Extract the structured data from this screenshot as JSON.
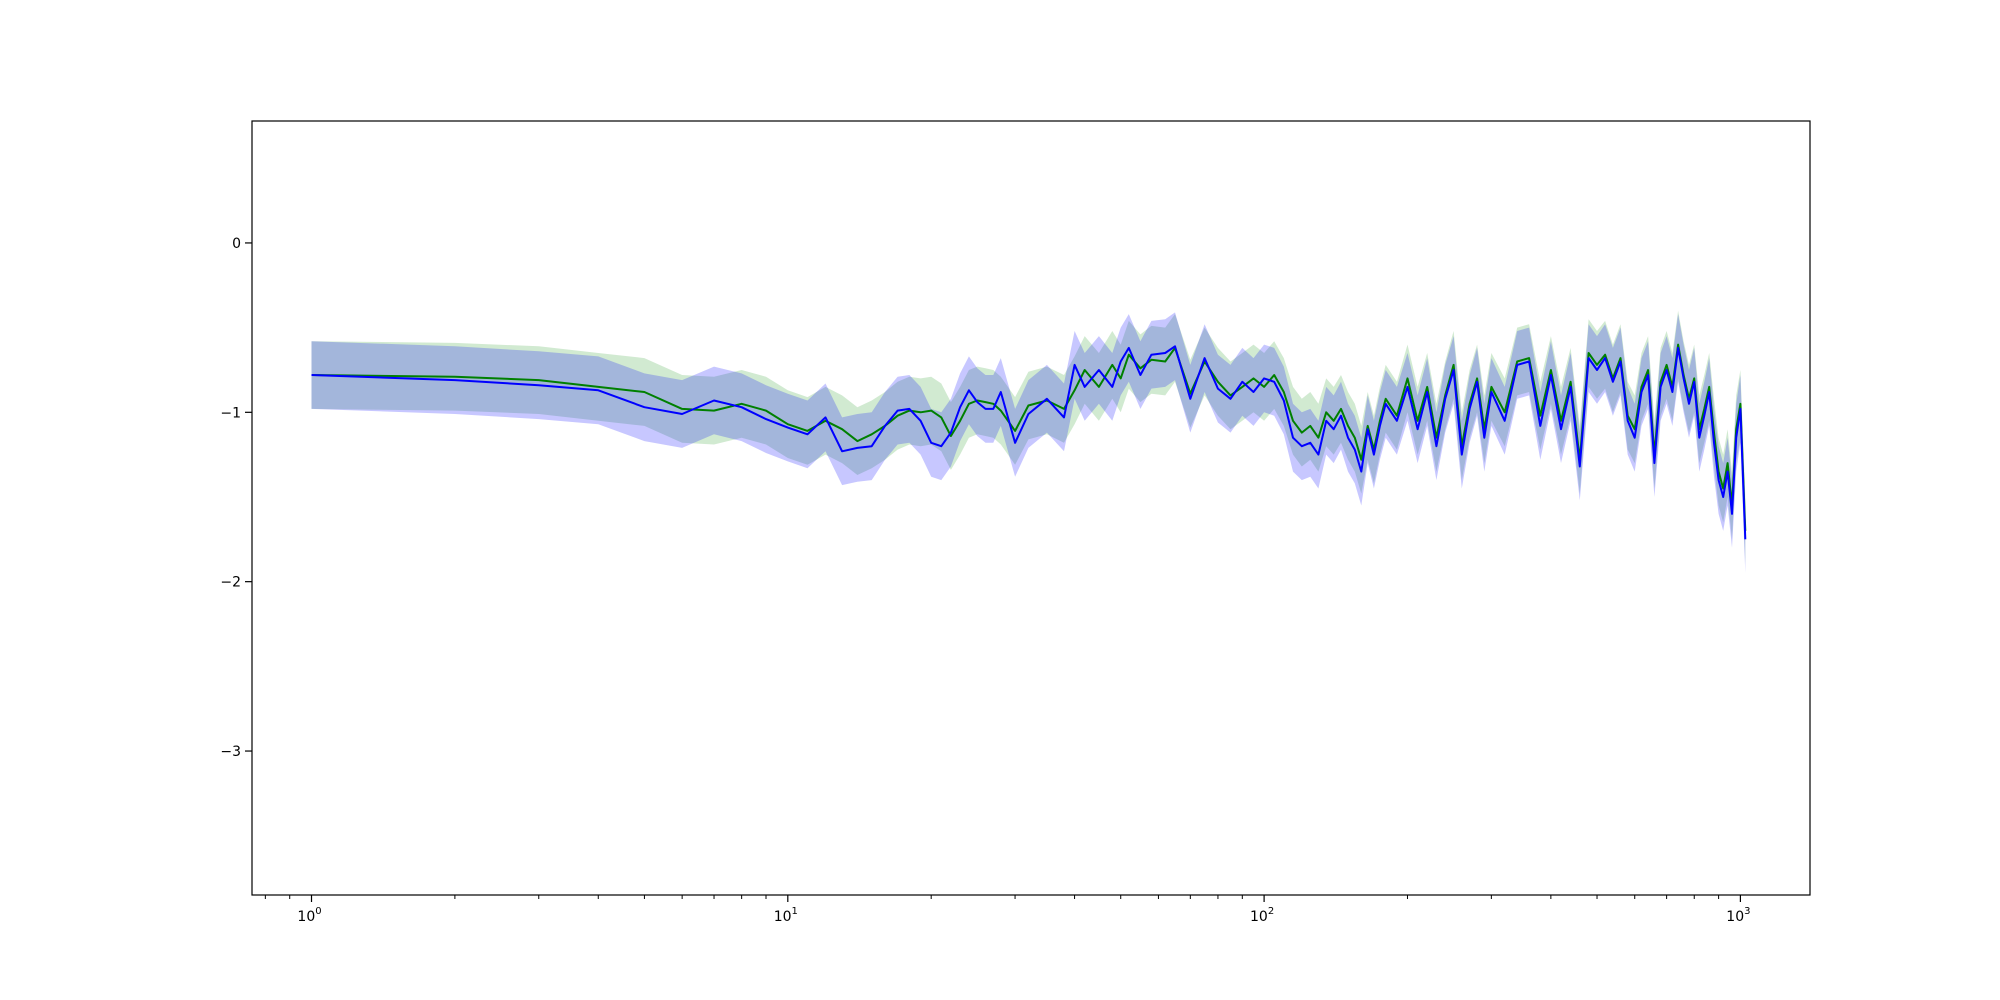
{
  "chart_data": {
    "type": "line",
    "title": "",
    "xlabel": "",
    "ylabel": "",
    "xscale": "log",
    "xlim": [
      0.75,
      1400
    ],
    "ylim": [
      -3.85,
      0.72
    ],
    "grid": false,
    "legend": "none",
    "x_ticks": [
      {
        "value": 1,
        "base": "10",
        "exp": "0"
      },
      {
        "value": 10,
        "base": "10",
        "exp": "1"
      },
      {
        "value": 100,
        "base": "10",
        "exp": "2"
      },
      {
        "value": 1000,
        "base": "10",
        "exp": "3"
      }
    ],
    "y_ticks": [
      {
        "value": 0,
        "label": "0"
      },
      {
        "value": -1,
        "label": "−1"
      },
      {
        "value": -2,
        "label": "−2"
      },
      {
        "value": -3,
        "label": "−3"
      }
    ],
    "series": [
      {
        "color": "#008000",
        "band_color": "#2ca02c",
        "points": [
          [
            1,
            -0.78
          ],
          [
            2,
            -0.79
          ],
          [
            3,
            -0.81
          ],
          [
            4,
            -0.85
          ],
          [
            5,
            -0.88
          ],
          [
            6,
            -0.98
          ],
          [
            7,
            -0.99
          ],
          [
            8,
            -0.95
          ],
          [
            9,
            -0.99
          ],
          [
            10,
            -1.07
          ],
          [
            11,
            -1.11
          ],
          [
            12,
            -1.05
          ],
          [
            13,
            -1.1
          ],
          [
            14,
            -1.17
          ],
          [
            15,
            -1.13
          ],
          [
            16,
            -1.08
          ],
          [
            17,
            -1.02
          ],
          [
            18,
            -0.99
          ],
          [
            19,
            -1.0
          ],
          [
            20,
            -0.99
          ],
          [
            21,
            -1.03
          ],
          [
            22,
            -1.14
          ],
          [
            23,
            -1.05
          ],
          [
            24,
            -0.95
          ],
          [
            25,
            -0.93
          ],
          [
            26,
            -0.94
          ],
          [
            27,
            -0.95
          ],
          [
            28,
            -0.99
          ],
          [
            30,
            -1.11
          ],
          [
            32,
            -0.96
          ],
          [
            35,
            -0.93
          ],
          [
            38,
            -0.98
          ],
          [
            40,
            -0.87
          ],
          [
            42,
            -0.75
          ],
          [
            45,
            -0.85
          ],
          [
            48,
            -0.72
          ],
          [
            50,
            -0.8
          ],
          [
            52,
            -0.66
          ],
          [
            55,
            -0.74
          ],
          [
            58,
            -0.69
          ],
          [
            62,
            -0.7
          ],
          [
            65,
            -0.62
          ],
          [
            70,
            -0.89
          ],
          [
            75,
            -0.7
          ],
          [
            80,
            -0.82
          ],
          [
            85,
            -0.9
          ],
          [
            90,
            -0.85
          ],
          [
            95,
            -0.8
          ],
          [
            100,
            -0.85
          ],
          [
            105,
            -0.78
          ],
          [
            110,
            -0.88
          ],
          [
            115,
            -1.05
          ],
          [
            120,
            -1.12
          ],
          [
            125,
            -1.08
          ],
          [
            130,
            -1.15
          ],
          [
            135,
            -1.0
          ],
          [
            140,
            -1.05
          ],
          [
            145,
            -0.98
          ],
          [
            150,
            -1.08
          ],
          [
            155,
            -1.15
          ],
          [
            160,
            -1.28
          ],
          [
            165,
            -1.08
          ],
          [
            170,
            -1.22
          ],
          [
            175,
            -1.05
          ],
          [
            180,
            -0.92
          ],
          [
            190,
            -1.02
          ],
          [
            200,
            -0.8
          ],
          [
            210,
            -1.05
          ],
          [
            220,
            -0.85
          ],
          [
            230,
            -1.15
          ],
          [
            240,
            -0.9
          ],
          [
            250,
            -0.72
          ],
          [
            260,
            -1.2
          ],
          [
            270,
            -0.95
          ],
          [
            280,
            -0.8
          ],
          [
            290,
            -1.1
          ],
          [
            300,
            -0.85
          ],
          [
            320,
            -1.0
          ],
          [
            340,
            -0.7
          ],
          [
            360,
            -0.68
          ],
          [
            380,
            -1.02
          ],
          [
            400,
            -0.75
          ],
          [
            420,
            -1.05
          ],
          [
            440,
            -0.82
          ],
          [
            460,
            -1.28
          ],
          [
            480,
            -0.65
          ],
          [
            500,
            -0.72
          ],
          [
            520,
            -0.66
          ],
          [
            540,
            -0.8
          ],
          [
            560,
            -0.68
          ],
          [
            580,
            -1.02
          ],
          [
            600,
            -1.1
          ],
          [
            620,
            -0.85
          ],
          [
            640,
            -0.75
          ],
          [
            660,
            -1.25
          ],
          [
            680,
            -0.82
          ],
          [
            700,
            -0.72
          ],
          [
            720,
            -0.85
          ],
          [
            740,
            -0.6
          ],
          [
            760,
            -0.78
          ],
          [
            780,
            -0.92
          ],
          [
            800,
            -0.8
          ],
          [
            820,
            -1.1
          ],
          [
            840,
            -0.98
          ],
          [
            860,
            -0.85
          ],
          [
            880,
            -1.12
          ],
          [
            900,
            -1.35
          ],
          [
            920,
            -1.45
          ],
          [
            940,
            -1.3
          ],
          [
            960,
            -1.55
          ],
          [
            980,
            -1.1
          ],
          [
            1000,
            -0.95
          ],
          [
            1024,
            -1.7
          ]
        ]
      },
      {
        "color": "#0000ff",
        "band_color": "#0000ff",
        "points": [
          [
            1,
            -0.78
          ],
          [
            2,
            -0.81
          ],
          [
            3,
            -0.84
          ],
          [
            4,
            -0.87
          ],
          [
            5,
            -0.97
          ],
          [
            6,
            -1.01
          ],
          [
            7,
            -0.93
          ],
          [
            8,
            -0.97
          ],
          [
            9,
            -1.04
          ],
          [
            10,
            -1.09
          ],
          [
            11,
            -1.13
          ],
          [
            12,
            -1.03
          ],
          [
            13,
            -1.23
          ],
          [
            14,
            -1.21
          ],
          [
            15,
            -1.2
          ],
          [
            16,
            -1.08
          ],
          [
            17,
            -0.99
          ],
          [
            18,
            -0.98
          ],
          [
            19,
            -1.05
          ],
          [
            20,
            -1.18
          ],
          [
            21,
            -1.2
          ],
          [
            22,
            -1.12
          ],
          [
            23,
            -0.97
          ],
          [
            24,
            -0.87
          ],
          [
            25,
            -0.94
          ],
          [
            26,
            -0.98
          ],
          [
            27,
            -0.98
          ],
          [
            28,
            -0.88
          ],
          [
            30,
            -1.18
          ],
          [
            32,
            -1.01
          ],
          [
            35,
            -0.92
          ],
          [
            38,
            -1.03
          ],
          [
            40,
            -0.72
          ],
          [
            42,
            -0.85
          ],
          [
            45,
            -0.75
          ],
          [
            48,
            -0.85
          ],
          [
            50,
            -0.7
          ],
          [
            52,
            -0.62
          ],
          [
            55,
            -0.78
          ],
          [
            58,
            -0.66
          ],
          [
            62,
            -0.65
          ],
          [
            65,
            -0.61
          ],
          [
            70,
            -0.92
          ],
          [
            75,
            -0.68
          ],
          [
            80,
            -0.86
          ],
          [
            85,
            -0.92
          ],
          [
            90,
            -0.82
          ],
          [
            95,
            -0.88
          ],
          [
            100,
            -0.8
          ],
          [
            105,
            -0.82
          ],
          [
            110,
            -0.93
          ],
          [
            115,
            -1.15
          ],
          [
            120,
            -1.2
          ],
          [
            125,
            -1.18
          ],
          [
            130,
            -1.25
          ],
          [
            135,
            -1.05
          ],
          [
            140,
            -1.1
          ],
          [
            145,
            -1.02
          ],
          [
            150,
            -1.15
          ],
          [
            155,
            -1.22
          ],
          [
            160,
            -1.35
          ],
          [
            165,
            -1.1
          ],
          [
            170,
            -1.25
          ],
          [
            175,
            -1.08
          ],
          [
            180,
            -0.95
          ],
          [
            190,
            -1.05
          ],
          [
            200,
            -0.85
          ],
          [
            210,
            -1.1
          ],
          [
            220,
            -0.88
          ],
          [
            230,
            -1.2
          ],
          [
            240,
            -0.92
          ],
          [
            250,
            -0.75
          ],
          [
            260,
            -1.25
          ],
          [
            270,
            -0.98
          ],
          [
            280,
            -0.82
          ],
          [
            290,
            -1.15
          ],
          [
            300,
            -0.88
          ],
          [
            320,
            -1.05
          ],
          [
            340,
            -0.72
          ],
          [
            360,
            -0.7
          ],
          [
            380,
            -1.08
          ],
          [
            400,
            -0.78
          ],
          [
            420,
            -1.1
          ],
          [
            440,
            -0.85
          ],
          [
            460,
            -1.32
          ],
          [
            480,
            -0.68
          ],
          [
            500,
            -0.75
          ],
          [
            520,
            -0.68
          ],
          [
            540,
            -0.82
          ],
          [
            560,
            -0.7
          ],
          [
            580,
            -1.05
          ],
          [
            600,
            -1.15
          ],
          [
            620,
            -0.88
          ],
          [
            640,
            -0.78
          ],
          [
            660,
            -1.3
          ],
          [
            680,
            -0.85
          ],
          [
            700,
            -0.75
          ],
          [
            720,
            -0.88
          ],
          [
            740,
            -0.62
          ],
          [
            760,
            -0.8
          ],
          [
            780,
            -0.95
          ],
          [
            800,
            -0.82
          ],
          [
            820,
            -1.15
          ],
          [
            840,
            -1.02
          ],
          [
            860,
            -0.88
          ],
          [
            880,
            -1.18
          ],
          [
            900,
            -1.4
          ],
          [
            920,
            -1.5
          ],
          [
            940,
            -1.35
          ],
          [
            960,
            -1.6
          ],
          [
            980,
            -1.15
          ],
          [
            1000,
            -0.98
          ],
          [
            1024,
            -1.75
          ]
        ]
      }
    ]
  }
}
